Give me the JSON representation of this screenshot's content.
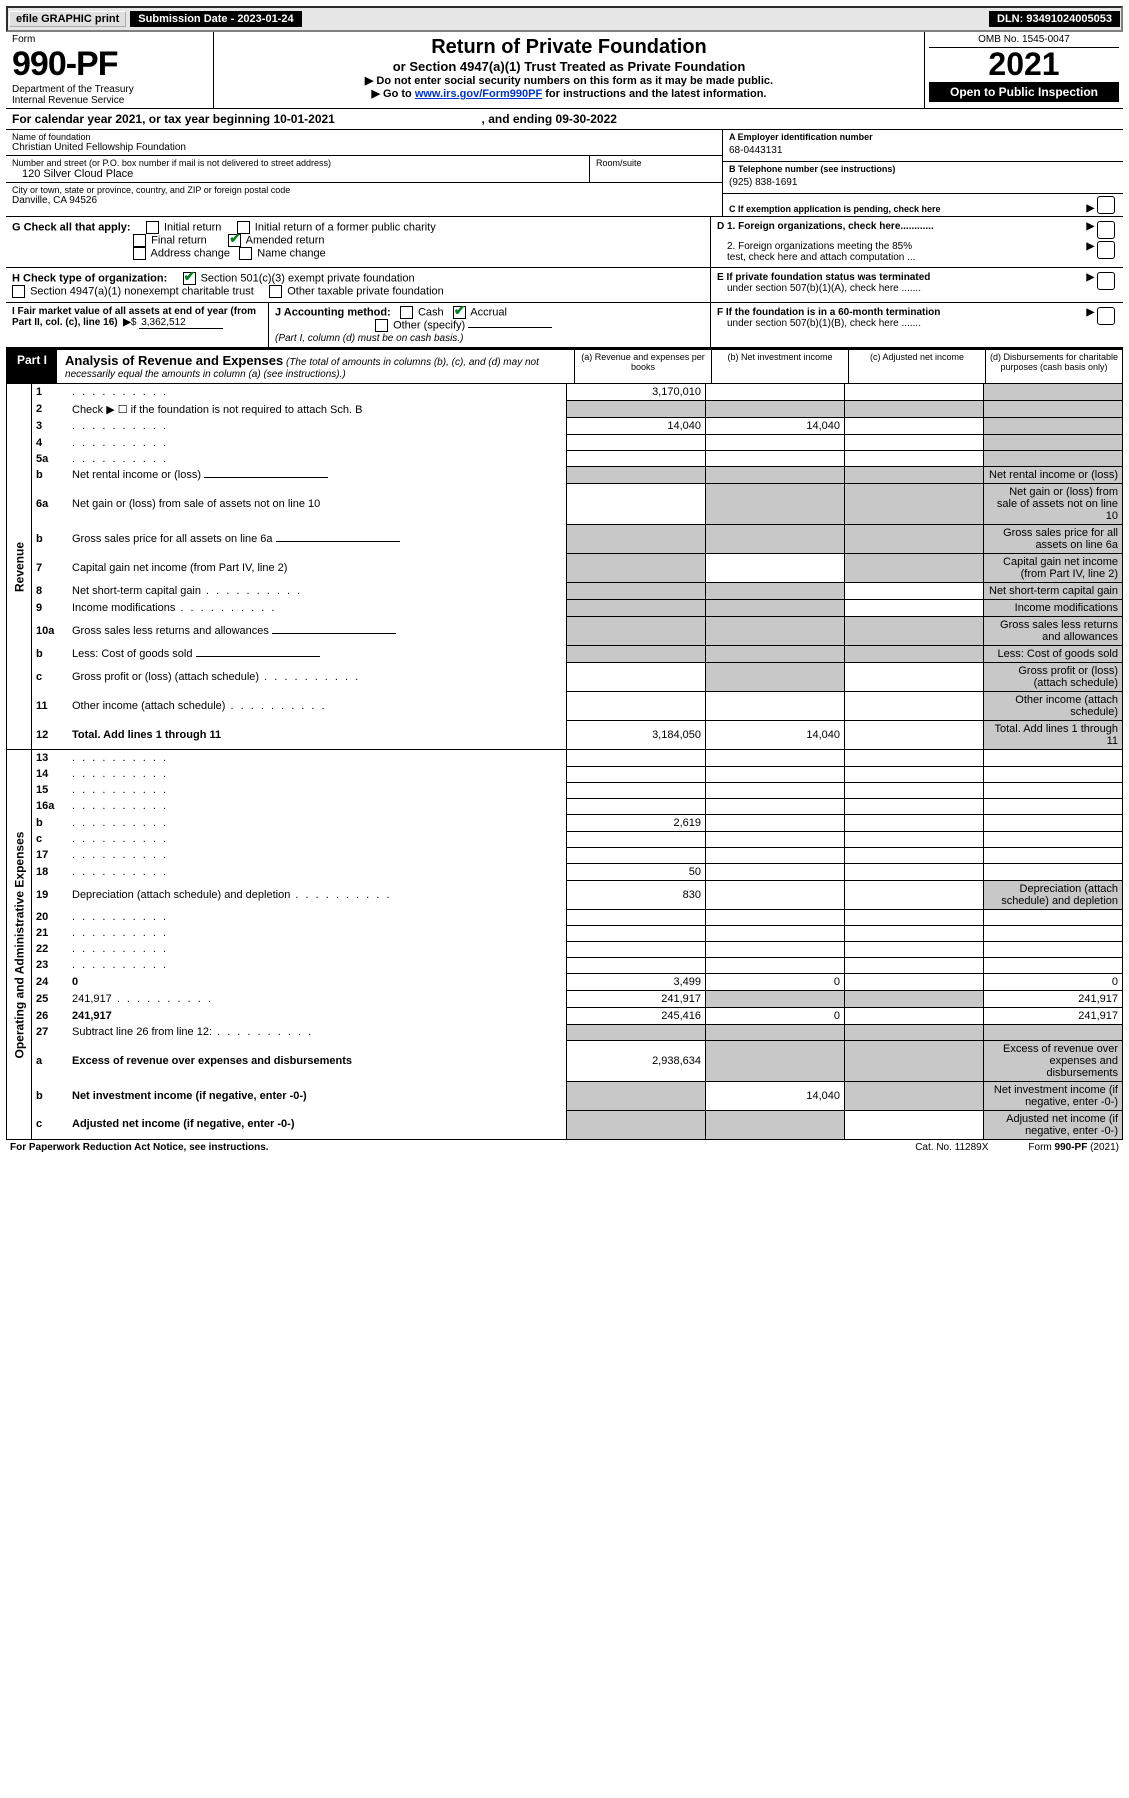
{
  "topbar": {
    "efile": "efile GRAPHIC print",
    "submission": "Submission Date - 2023-01-24",
    "dln": "DLN: 93491024005053"
  },
  "header": {
    "form_label": "Form",
    "form_no": "990-PF",
    "dept1": "Department of the Treasury",
    "dept2": "Internal Revenue Service",
    "title": "Return of Private Foundation",
    "subtitle": "or Section 4947(a)(1) Trust Treated as Private Foundation",
    "warn1": "▶ Do not enter social security numbers on this form as it may be made public.",
    "warn2_pre": "▶ Go to ",
    "warn2_link": "www.irs.gov/Form990PF",
    "warn2_post": " for instructions and the latest information.",
    "omb": "OMB No. 1545-0047",
    "year": "2021",
    "open": "Open to Public Inspection"
  },
  "cal": {
    "pre": "For calendar year 2021, or tax year beginning ",
    "begin": "10-01-2021",
    "mid": ", and ending ",
    "end": "09-30-2022"
  },
  "entity": {
    "name_lbl": "Name of foundation",
    "name": "Christian United Fellowship Foundation",
    "addr_lbl": "Number and street (or P.O. box number if mail is not delivered to street address)",
    "addr": "120 Silver Cloud Place",
    "room_lbl": "Room/suite",
    "city_lbl": "City or town, state or province, country, and ZIP or foreign postal code",
    "city": "Danville, CA  94526",
    "a_lbl": "A Employer identification number",
    "a_val": "68-0443131",
    "b_lbl": "B Telephone number (see instructions)",
    "b_val": "(925) 838-1691",
    "c_lbl": "C If exemption application is pending, check here"
  },
  "checks": {
    "g_lbl": "G Check all that apply:",
    "g_items": [
      "Initial return",
      "Initial return of a former public charity",
      "Final return",
      "Amended return",
      "Address change",
      "Name change"
    ],
    "h_lbl": "H Check type of organization:",
    "h1": "Section 501(c)(3) exempt private foundation",
    "h2": "Section 4947(a)(1) nonexempt charitable trust",
    "h3": "Other taxable private foundation",
    "d1": "D 1. Foreign organizations, check here............",
    "d2a": "2. Foreign organizations meeting the 85%",
    "d2b": "test, check here and attach computation ...",
    "e1": "E  If private foundation status was terminated",
    "e2": "under section 507(b)(1)(A), check here .......",
    "i_lbl": "I Fair market value of all assets at end of year (from Part II, col. (c), line 16)",
    "i_val": "3,362,512",
    "j_lbl": "J Accounting method:",
    "j_cash": "Cash",
    "j_accrual": "Accrual",
    "j_other": "Other (specify)",
    "j_note": "(Part I, column (d) must be on cash basis.)",
    "f1": "F  If the foundation is in a 60-month termination",
    "f2": "under section 507(b)(1)(B), check here ......."
  },
  "part1": {
    "label": "Part I",
    "title": "Analysis of Revenue and Expenses",
    "title_note": " (The total of amounts in columns (b), (c), and (d) may not necessarily equal the amounts in column (a) (see instructions).)",
    "cols": {
      "a": "(a)   Revenue and expenses per books",
      "b": "(b)   Net investment income",
      "c": "(c)   Adjusted net income",
      "d": "(d)   Disbursements for charitable purposes (cash basis only)"
    }
  },
  "side": {
    "revenue": "Revenue",
    "expenses": "Operating and Administrative Expenses"
  },
  "rows": [
    {
      "n": "1",
      "d": "",
      "a": "3,170,010",
      "b": "",
      "c": "",
      "shade_d": true
    },
    {
      "n": "2",
      "d": "Check ▶ ☐ if the foundation is not required to attach Sch. B",
      "span": true
    },
    {
      "n": "3",
      "d": "",
      "a": "14,040",
      "b": "14,040",
      "c": "",
      "shade_d": true
    },
    {
      "n": "4",
      "d": "",
      "a": "",
      "b": "",
      "c": "",
      "shade_d": true
    },
    {
      "n": "5a",
      "d": "",
      "a": "",
      "b": "",
      "c": "",
      "shade_d": true
    },
    {
      "n": "b",
      "d": "Net rental income or (loss)",
      "sub": true,
      "shade_all": true
    },
    {
      "n": "6a",
      "d": "Net gain or (loss) from sale of assets not on line 10",
      "a": "",
      "shade_bcd": true
    },
    {
      "n": "b",
      "d": "Gross sales price for all assets on line 6a",
      "sub": true,
      "shade_all": true
    },
    {
      "n": "7",
      "d": "Capital gain net income (from Part IV, line 2)",
      "shade_a": true,
      "b": "",
      "shade_cd": true
    },
    {
      "n": "8",
      "d": "Net short-term capital gain",
      "shade_ab": true,
      "c": "",
      "shade_d": true
    },
    {
      "n": "9",
      "d": "Income modifications",
      "shade_ab": true,
      "c": "",
      "shade_d": true
    },
    {
      "n": "10a",
      "d": "Gross sales less returns and allowances",
      "sub": true,
      "shade_all": true
    },
    {
      "n": "b",
      "d": "Less: Cost of goods sold",
      "sub": true,
      "shade_all": true
    },
    {
      "n": "c",
      "d": "Gross profit or (loss) (attach schedule)",
      "a": "",
      "shade_b": true,
      "c": "",
      "shade_d": true
    },
    {
      "n": "11",
      "d": "Other income (attach schedule)",
      "a": "",
      "b": "",
      "c": "",
      "shade_d": true
    },
    {
      "n": "12",
      "d": "Total. Add lines 1 through 11",
      "bold": true,
      "a": "3,184,050",
      "b": "14,040",
      "c": "",
      "shade_d": true
    }
  ],
  "exp_rows": [
    {
      "n": "13",
      "d": "",
      "a": "",
      "b": "",
      "c": ""
    },
    {
      "n": "14",
      "d": "",
      "a": "",
      "b": "",
      "c": ""
    },
    {
      "n": "15",
      "d": "",
      "a": "",
      "b": "",
      "c": ""
    },
    {
      "n": "16a",
      "d": "",
      "a": "",
      "b": "",
      "c": ""
    },
    {
      "n": "b",
      "d": "",
      "a": "2,619",
      "b": "",
      "c": ""
    },
    {
      "n": "c",
      "d": "",
      "a": "",
      "b": "",
      "c": ""
    },
    {
      "n": "17",
      "d": "",
      "a": "",
      "b": "",
      "c": ""
    },
    {
      "n": "18",
      "d": "",
      "a": "50",
      "b": "",
      "c": ""
    },
    {
      "n": "19",
      "d": "Depreciation (attach schedule) and depletion",
      "a": "830",
      "b": "",
      "c": "",
      "shade_d": true
    },
    {
      "n": "20",
      "d": "",
      "a": "",
      "b": "",
      "c": ""
    },
    {
      "n": "21",
      "d": "",
      "a": "",
      "b": "",
      "c": ""
    },
    {
      "n": "22",
      "d": "",
      "a": "",
      "b": "",
      "c": ""
    },
    {
      "n": "23",
      "d": "",
      "a": "",
      "b": "",
      "c": ""
    },
    {
      "n": "24",
      "d": "0",
      "bold": true,
      "a": "3,499",
      "b": "0",
      "c": ""
    },
    {
      "n": "25",
      "d": "241,917",
      "a": "241,917",
      "shade_bc": true
    },
    {
      "n": "26",
      "d": "241,917",
      "bold": true,
      "a": "245,416",
      "b": "0",
      "c": ""
    },
    {
      "n": "27",
      "d": "Subtract line 26 from line 12:",
      "span_shade": true
    },
    {
      "n": "a",
      "d": "Excess of revenue over expenses and disbursements",
      "bold": true,
      "a": "2,938,634",
      "shade_bcd": true
    },
    {
      "n": "b",
      "d": "Net investment income (if negative, enter -0-)",
      "bold": true,
      "shade_a": true,
      "b": "14,040",
      "shade_cd": true
    },
    {
      "n": "c",
      "d": "Adjusted net income (if negative, enter -0-)",
      "bold": true,
      "shade_ab": true,
      "c": "",
      "shade_d": true
    }
  ],
  "footer": {
    "left": "For Paperwork Reduction Act Notice, see instructions.",
    "mid": "Cat. No. 11289X",
    "right": "Form 990-PF (2021)"
  },
  "colors": {
    "shade": "#c8c8c8",
    "link": "#0033cc",
    "check": "#0a7d2a"
  }
}
